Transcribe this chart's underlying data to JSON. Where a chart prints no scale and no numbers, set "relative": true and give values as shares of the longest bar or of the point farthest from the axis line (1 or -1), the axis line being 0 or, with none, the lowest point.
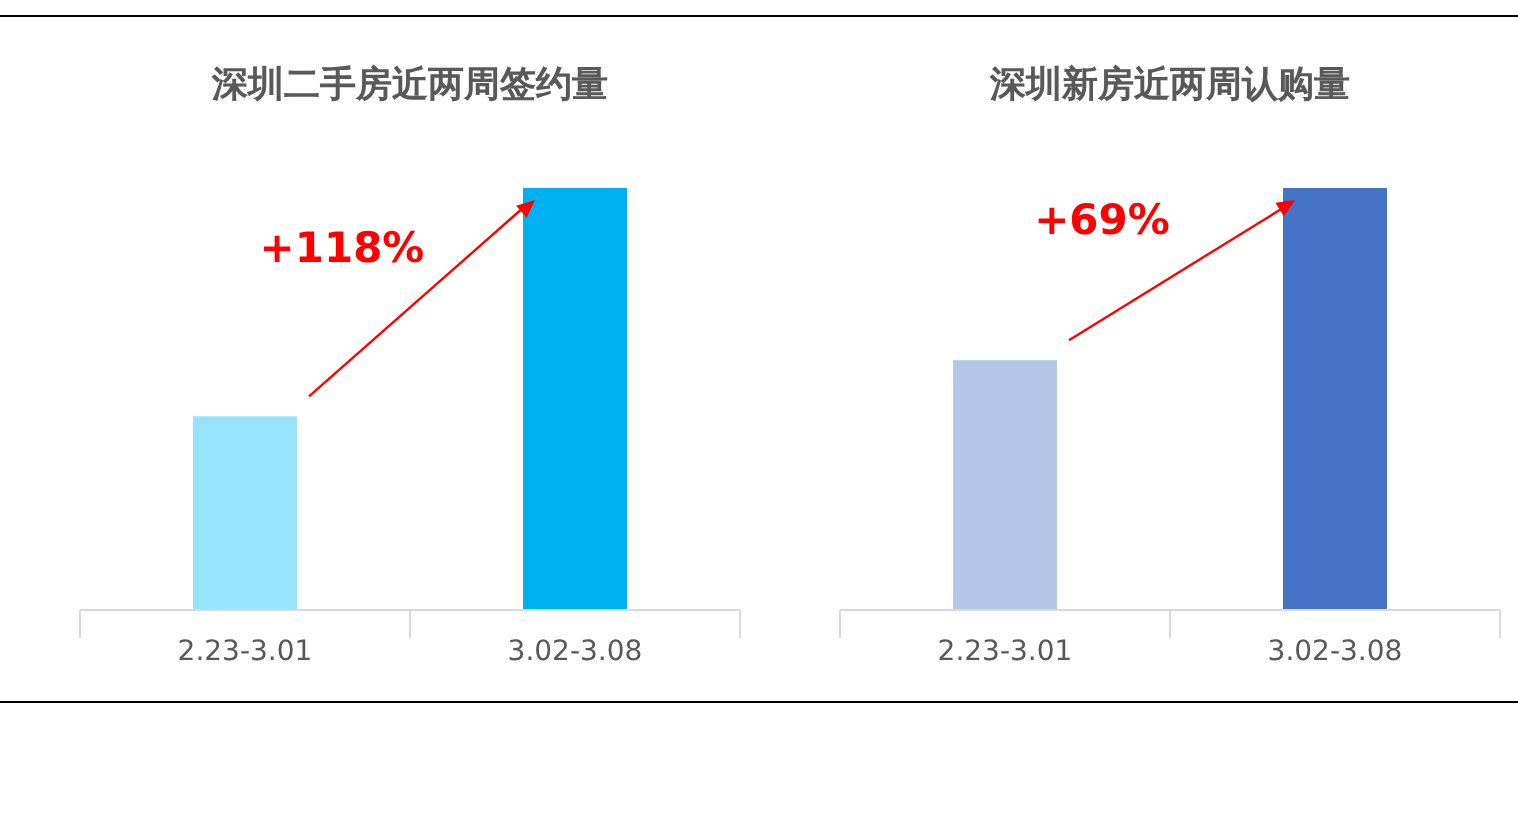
{
  "chart_data": [
    {
      "type": "bar",
      "title": "深圳二手房近两周签约量",
      "categories": [
        "2.23-3.01",
        "3.02-3.08"
      ],
      "values": [
        0.459,
        1
      ],
      "colors": [
        "#97e3fd",
        "#00b0f0"
      ],
      "relative": true,
      "annotations": [
        "+118%"
      ]
    },
    {
      "type": "bar",
      "title": "深圳新房近两周认购量",
      "categories": [
        "2.23-3.01",
        "3.02-3.08"
      ],
      "values": [
        0.592,
        1
      ],
      "colors": [
        "#b4c7e7",
        "#4472c4"
      ],
      "relative": true,
      "annotations": [
        "+69%"
      ]
    }
  ]
}
